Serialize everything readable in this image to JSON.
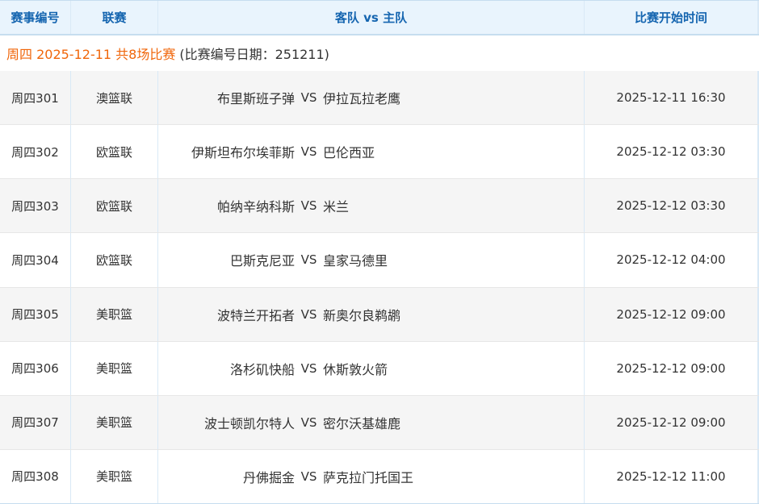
{
  "table": {
    "columns": [
      "赛事编号",
      "联赛",
      "客队 vs 主队",
      "比赛开始时间"
    ]
  },
  "subtitle": {
    "highlight": "周四 2025-12-11 共8场比赛",
    "note": "(比赛编号日期：251211)"
  },
  "vs_label": "VS",
  "matches": [
    {
      "id": "周四301",
      "league": "澳篮联",
      "away": "布里斯班子弹",
      "home": "伊拉瓦拉老鹰",
      "time": "2025-12-11 16:30"
    },
    {
      "id": "周四302",
      "league": "欧篮联",
      "away": "伊斯坦布尔埃菲斯",
      "home": "巴伦西亚",
      "time": "2025-12-12 03:30"
    },
    {
      "id": "周四303",
      "league": "欧篮联",
      "away": "帕纳辛纳科斯",
      "home": "米兰",
      "time": "2025-12-12 03:30"
    },
    {
      "id": "周四304",
      "league": "欧篮联",
      "away": "巴斯克尼亚",
      "home": "皇家马德里",
      "time": "2025-12-12 04:00"
    },
    {
      "id": "周四305",
      "league": "美职篮",
      "away": "波特兰开拓者",
      "home": "新奥尔良鹈鹕",
      "time": "2025-12-12 09:00"
    },
    {
      "id": "周四306",
      "league": "美职篮",
      "away": "洛杉矶快船",
      "home": "休斯敦火箭",
      "time": "2025-12-12 09:00"
    },
    {
      "id": "周四307",
      "league": "美职篮",
      "away": "波士顿凯尔特人",
      "home": "密尔沃基雄鹿",
      "time": "2025-12-12 09:00"
    },
    {
      "id": "周四308",
      "league": "美职篮",
      "away": "丹佛掘金",
      "home": "萨克拉门托国王",
      "time": "2025-12-12 11:00"
    }
  ],
  "colors": {
    "header_bg": "#e9f4fd",
    "header_text": "#1565b0",
    "subtitle_orange": "#f0660a",
    "divider_blue": "#d9e9f6",
    "outer_border_blue": "#c6ddef",
    "row_divider_gray": "#e7e7e7",
    "alt_row_bg": "#f5f5f5",
    "body_text": "#333333"
  }
}
